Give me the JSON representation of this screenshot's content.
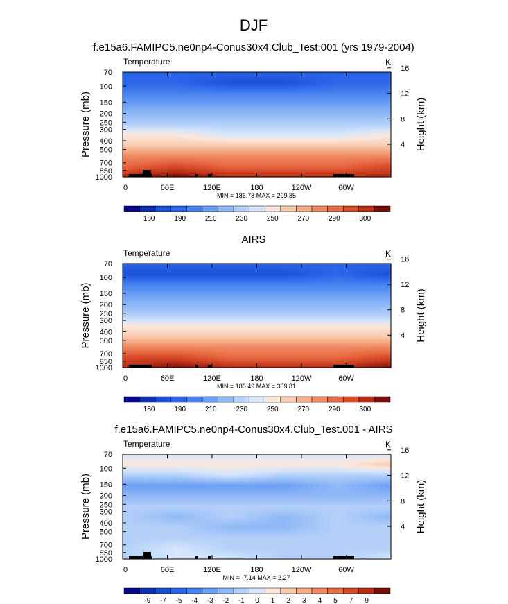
{
  "title": "DJF",
  "chart_data": [
    {
      "type": "heatmap",
      "title": "f.e15a6.FAMIPC5.ne0np4-Conus30x4.Club_Test.001 (yrs 1979-2004)",
      "variable": "Temperature",
      "units": "K",
      "ylabel": "Pressure (mb)",
      "ylabel_right": "Height (km)",
      "y_ticks": [
        "70",
        "100",
        "150",
        "200",
        "250",
        "300",
        "400",
        "500",
        "700",
        "850",
        "1000"
      ],
      "y_values": [
        70,
        100,
        150,
        200,
        250,
        300,
        400,
        500,
        700,
        850,
        1000
      ],
      "ylim": [
        1000,
        70
      ],
      "height_ticks": [
        "4",
        "8",
        "12",
        "16"
      ],
      "height_values": [
        4,
        8,
        12,
        16
      ],
      "x_ticks": [
        "0",
        "60E",
        "120E",
        "180",
        "120W",
        "60W"
      ],
      "x_values": [
        0,
        60,
        120,
        180,
        240,
        300
      ],
      "xlim": [
        0,
        360
      ],
      "min": "186.78",
      "max": "299.85",
      "stats_label": "MIN = 186.78  MAX = 299.85",
      "levels": [
        "180",
        "190",
        "210",
        "230",
        "250",
        "270",
        "290",
        "300"
      ],
      "colors": [
        "#08088a",
        "#0f2fb3",
        "#1b50d6",
        "#2a66ea",
        "#4680f0",
        "#6b9ef5",
        "#8fb8f7",
        "#b4d0f9",
        "#d6e6fb",
        "#fbe7dc",
        "#f8cbb0",
        "#f5ac88",
        "#f08a62",
        "#e86a43",
        "#d64a28",
        "#b82c15",
        "#7a0f0a"
      ],
      "values": [
        [
          3,
          3,
          3,
          3,
          3,
          3
        ],
        [
          3,
          3,
          2,
          2,
          3,
          3
        ],
        [
          4,
          4,
          4,
          4,
          4,
          4
        ],
        [
          5,
          5,
          5,
          5,
          5,
          5
        ],
        [
          6,
          6,
          6,
          6,
          6,
          6
        ],
        [
          7,
          7,
          7,
          7,
          7,
          7
        ],
        [
          9,
          9,
          8,
          8,
          8,
          9
        ],
        [
          10,
          10,
          10,
          10,
          10,
          10
        ],
        [
          12,
          12,
          12,
          12,
          12,
          12
        ],
        [
          13,
          14,
          13,
          13,
          13,
          14
        ],
        [
          15,
          16,
          15,
          15,
          15,
          15
        ]
      ]
    },
    {
      "type": "heatmap",
      "title": "AIRS",
      "variable": "Temperature",
      "units": "K",
      "ylabel": "Pressure (mb)",
      "ylabel_right": "Height (km)",
      "y_ticks": [
        "70",
        "100",
        "150",
        "200",
        "250",
        "300",
        "400",
        "500",
        "700",
        "850",
        "1000"
      ],
      "y_values": [
        70,
        100,
        150,
        200,
        250,
        300,
        400,
        500,
        700,
        850,
        1000
      ],
      "ylim": [
        1000,
        70
      ],
      "height_ticks": [
        "4",
        "8",
        "12",
        "16"
      ],
      "height_values": [
        4,
        8,
        12,
        16
      ],
      "x_ticks": [
        "0",
        "60E",
        "120E",
        "180",
        "120W",
        "60W"
      ],
      "x_values": [
        0,
        60,
        120,
        180,
        240,
        300
      ],
      "xlim": [
        0,
        360
      ],
      "min": "186.49",
      "max": "309.81",
      "stats_label": "MIN = 186.49  MAX = 309.81",
      "levels": [
        "180",
        "190",
        "210",
        "230",
        "250",
        "270",
        "290",
        "300"
      ],
      "colors": [
        "#08088a",
        "#0f2fb3",
        "#1b50d6",
        "#2a66ea",
        "#4680f0",
        "#6b9ef5",
        "#8fb8f7",
        "#b4d0f9",
        "#d6e6fb",
        "#fbe7dc",
        "#f8cbb0",
        "#f5ac88",
        "#f08a62",
        "#e86a43",
        "#d64a28",
        "#b82c15",
        "#7a0f0a"
      ],
      "values": [
        [
          3,
          3,
          3,
          3,
          3,
          3
        ],
        [
          2,
          2,
          2,
          2,
          3,
          2
        ],
        [
          4,
          4,
          4,
          4,
          4,
          4
        ],
        [
          5,
          5,
          5,
          5,
          5,
          5
        ],
        [
          6,
          6,
          6,
          6,
          6,
          6
        ],
        [
          7,
          7,
          7,
          7,
          7,
          7
        ],
        [
          9,
          9,
          9,
          9,
          9,
          9
        ],
        [
          10,
          10,
          10,
          10,
          10,
          10
        ],
        [
          12,
          12,
          12,
          12,
          12,
          12
        ],
        [
          14,
          14,
          13,
          13,
          13,
          14
        ],
        [
          15,
          16,
          15,
          15,
          15,
          16
        ]
      ]
    },
    {
      "type": "heatmap",
      "title": "f.e15a6.FAMIPC5.ne0np4-Conus30x4.Club_Test.001 - AIRS",
      "variable": "Temperature",
      "units": "K",
      "ylabel": "Pressure (mb)",
      "ylabel_right": "Height (km)",
      "y_ticks": [
        "70",
        "100",
        "150",
        "200",
        "250",
        "300",
        "400",
        "500",
        "700",
        "850",
        "1000"
      ],
      "y_values": [
        70,
        100,
        150,
        200,
        250,
        300,
        400,
        500,
        700,
        850,
        1000
      ],
      "ylim": [
        1000,
        70
      ],
      "height_ticks": [
        "4",
        "8",
        "12",
        "16"
      ],
      "height_values": [
        4,
        8,
        12,
        16
      ],
      "x_ticks": [
        "0",
        "60E",
        "120E",
        "180",
        "120W",
        "60W"
      ],
      "x_values": [
        0,
        60,
        120,
        180,
        240,
        300
      ],
      "xlim": [
        0,
        360
      ],
      "min": "-7.14",
      "max": "2.27",
      "stats_label": "MIN = -7.14  MAX =   2.27",
      "levels": [
        "-9",
        "-7",
        "-5",
        "-4",
        "-3",
        "-2",
        "-1",
        "0",
        "1",
        "2",
        "3",
        "4",
        "5",
        "7",
        "9"
      ],
      "colors": [
        "#08088a",
        "#0f2fb3",
        "#1b50d6",
        "#2a66ea",
        "#4680f0",
        "#6b9ef5",
        "#8fb8f7",
        "#b4d0f9",
        "#d6e6fb",
        "#fbe7dc",
        "#f8cbb0",
        "#f5ac88",
        "#f08a62",
        "#e86a43",
        "#d64a28",
        "#b82c15",
        "#7a0f0a"
      ],
      "values": [
        [
          8,
          8,
          8,
          8,
          8,
          8
        ],
        [
          9,
          9,
          9,
          9,
          9,
          10
        ],
        [
          7,
          7,
          8,
          7,
          7,
          7
        ],
        [
          5,
          5,
          5,
          5,
          6,
          5
        ],
        [
          6,
          6,
          6,
          6,
          6,
          6
        ],
        [
          7,
          7,
          7,
          7,
          7,
          7
        ],
        [
          7,
          6,
          7,
          6,
          7,
          6
        ],
        [
          7,
          7,
          6,
          6,
          7,
          7
        ],
        [
          7,
          7,
          7,
          7,
          7,
          7
        ],
        [
          7,
          8,
          7,
          7,
          7,
          7
        ],
        [
          7,
          8,
          8,
          7,
          7,
          8
        ]
      ]
    }
  ]
}
